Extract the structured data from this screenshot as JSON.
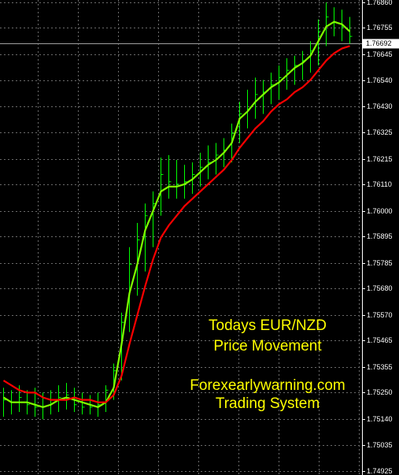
{
  "chart_data": {
    "type": "ohlc",
    "color": "#00ff00",
    "high": [
      1.7527,
      1.7526,
      1.7528,
      1.7526,
      1.7527,
      1.7525,
      1.7526,
      1.7528,
      1.7529,
      1.7527,
      1.7525,
      1.7524,
      1.7525,
      1.7528,
      1.7537,
      1.7558,
      1.7585,
      1.7595,
      1.7603,
      1.7608,
      1.7622,
      1.7623,
      1.7621,
      1.7619,
      1.762,
      1.7624,
      1.7627,
      1.7628,
      1.763,
      1.7636,
      1.7645,
      1.765,
      1.7655,
      1.7654,
      1.7657,
      1.766,
      1.7663,
      1.7664,
      1.7666,
      1.767,
      1.7679,
      1.7686,
      1.7684,
      1.7683,
      1.768
    ],
    "low": [
      1.7515,
      1.7516,
      1.7517,
      1.7516,
      1.7515,
      1.7514,
      1.7516,
      1.7517,
      1.7518,
      1.7517,
      1.7516,
      1.7516,
      1.7515,
      1.7517,
      1.7522,
      1.753,
      1.755,
      1.7565,
      1.7575,
      1.7585,
      1.7598,
      1.7605,
      1.7605,
      1.7605,
      1.7607,
      1.761,
      1.7613,
      1.7615,
      1.7618,
      1.762,
      1.7628,
      1.7634,
      1.7638,
      1.764,
      1.7644,
      1.7646,
      1.765,
      1.7652,
      1.7654,
      1.7657,
      1.766,
      1.7668,
      1.7672,
      1.767,
      1.7669
    ],
    "close": [
      1.7522,
      1.7521,
      1.7523,
      1.752,
      1.7519,
      1.7519,
      1.7522,
      1.7523,
      1.7524,
      1.752,
      1.7519,
      1.7519,
      1.752,
      1.7526,
      1.7534,
      1.7554,
      1.7578,
      1.7588,
      1.7598,
      1.7603,
      1.7615,
      1.7612,
      1.7611,
      1.7612,
      1.7615,
      1.7618,
      1.762,
      1.7623,
      1.7625,
      1.7632,
      1.764,
      1.7642,
      1.7648,
      1.7649,
      1.7652,
      1.7655,
      1.7658,
      1.766,
      1.7662,
      1.7666,
      1.7674,
      1.768,
      1.7678,
      1.7676,
      1.7672
    ],
    "lines": [
      {
        "color": "#80ff00",
        "values": [
          1.7523,
          1.7521,
          1.7521,
          1.7521,
          1.752,
          1.7519,
          1.752,
          1.7522,
          1.7523,
          1.7522,
          1.7521,
          1.752,
          1.7519,
          1.7521,
          1.7527,
          1.7545,
          1.7566,
          1.7578,
          1.7592,
          1.76,
          1.7608,
          1.761,
          1.761,
          1.7611,
          1.7613,
          1.7616,
          1.7619,
          1.7621,
          1.7624,
          1.7628,
          1.7638,
          1.7641,
          1.7645,
          1.7648,
          1.7651,
          1.7653,
          1.7656,
          1.7659,
          1.7661,
          1.7664,
          1.767,
          1.7676,
          1.7678,
          1.7677,
          1.7674
        ]
      },
      {
        "color": "#ff0000",
        "values": [
          1.753,
          1.7528,
          1.7526,
          1.7525,
          1.7525,
          1.7523,
          1.7522,
          1.7522,
          1.7522,
          1.7523,
          1.7522,
          1.7522,
          1.7521,
          1.7521,
          1.7524,
          1.7532,
          1.7545,
          1.7557,
          1.7569,
          1.758,
          1.7589,
          1.7594,
          1.7598,
          1.7602,
          1.7605,
          1.7608,
          1.7611,
          1.7614,
          1.7617,
          1.7621,
          1.7626,
          1.763,
          1.7634,
          1.7637,
          1.7641,
          1.7644,
          1.7646,
          1.7649,
          1.7651,
          1.7654,
          1.7658,
          1.7662,
          1.7665,
          1.7667,
          1.7668
        ]
      }
    ],
    "current_price": 1.76692,
    "ylim": [
      1.7491,
      1.7687
    ],
    "yticks": [
      {
        "value": 1.7686,
        "label": "1.76860"
      },
      1.76755,
      1.76645,
      {
        "value": 1.7654,
        "label": "1.76540"
      },
      {
        "value": 1.7643,
        "label": "1.76430"
      },
      1.76325,
      1.76215,
      {
        "value": 1.7611,
        "label": "1.76110"
      },
      {
        "value": 1.76,
        "label": "1.76000"
      },
      1.75895,
      1.75785,
      {
        "value": 1.7568,
        "label": "1.75680"
      },
      {
        "value": 1.7557,
        "label": "1.75570"
      },
      1.75465,
      1.75355,
      {
        "value": 1.7525,
        "label": "1.75250"
      },
      {
        "value": 1.7514,
        "label": "1.75140"
      },
      1.75035,
      1.74925
    ],
    "grid": true,
    "annotations": [
      "Todays EUR/NZD",
      "Price Movement",
      "Forexearlywarning.com",
      "Trading System"
    ],
    "annotation_color": "#ffff00"
  }
}
